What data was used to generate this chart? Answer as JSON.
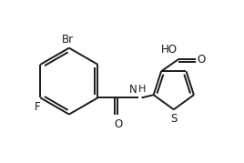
{
  "background_color": "#ffffff",
  "line_color": "#1a1a1a",
  "line_width": 1.4,
  "font_size": 8.5,
  "figsize": [
    2.68,
    1.79
  ],
  "dpi": 100,
  "xlim": [
    0,
    10
  ],
  "ylim": [
    0,
    6.67
  ]
}
